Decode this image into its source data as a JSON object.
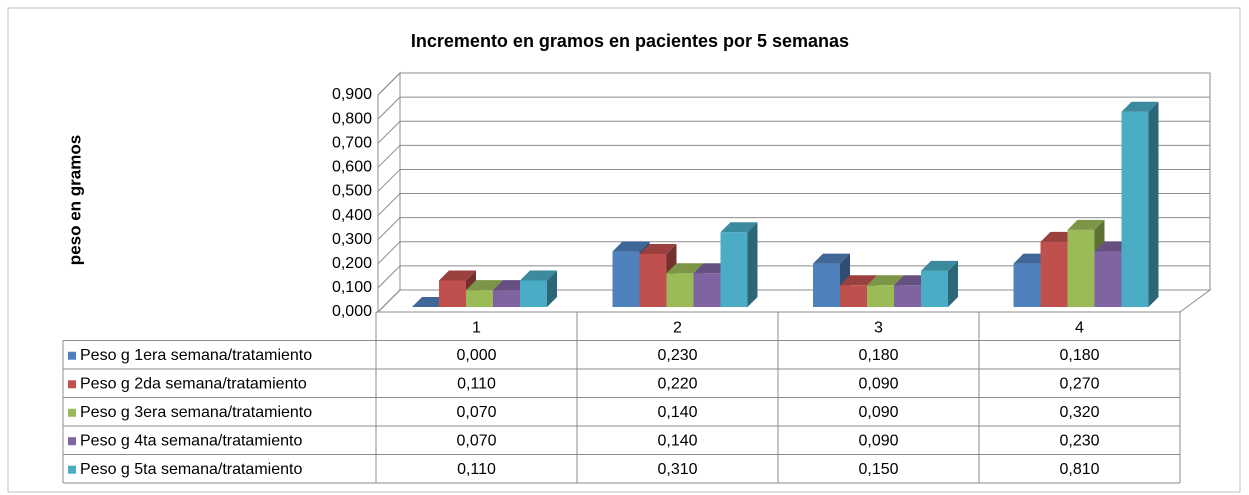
{
  "chart_data": {
    "type": "bar3d",
    "title": "Incremento en gramos en pacientes por 5 semanas",
    "y_label": "peso en gramos",
    "categories": [
      "1",
      "2",
      "3",
      "4"
    ],
    "series": [
      {
        "name": "Peso g 1era semana/tratamiento",
        "color": "#4f81bd",
        "values": [
          0,
          0.23,
          0.18,
          0.18
        ],
        "value_labels": [
          "0,000",
          "0,230",
          "0,180",
          "0,180"
        ]
      },
      {
        "name": "Peso g 2da semana/tratamiento",
        "color": "#c0504d",
        "values": [
          0.11,
          0.22,
          0.09,
          0.27
        ],
        "value_labels": [
          "0,110",
          "0,220",
          "0,090",
          "0,270"
        ]
      },
      {
        "name": "Peso g 3era semana/tratamiento",
        "color": "#9bbb59",
        "values": [
          0.07,
          0.14,
          0.09,
          0.32
        ],
        "value_labels": [
          "0,070",
          "0,140",
          "0,090",
          "0,320"
        ]
      },
      {
        "name": "Peso g 4ta semana/tratamiento",
        "color": "#8064a2",
        "values": [
          0.07,
          0.14,
          0.09,
          0.23
        ],
        "value_labels": [
          "0,070",
          "0,140",
          "0,090",
          "0,230"
        ]
      },
      {
        "name": "Peso g 5ta semana/tratamiento",
        "color": "#4bacc6",
        "values": [
          0.11,
          0.31,
          0.15,
          0.81
        ],
        "value_labels": [
          "0,110",
          "0,310",
          "0,150",
          "0,810"
        ]
      }
    ],
    "ylim": [
      0,
      0.9
    ],
    "yticks": [
      {
        "value": 0,
        "label": "0,000"
      },
      {
        "value": 0.1,
        "label": "0,100"
      },
      {
        "value": 0.2,
        "label": "0,200"
      },
      {
        "value": 0.3,
        "label": "0,300"
      },
      {
        "value": 0.4,
        "label": "0,400"
      },
      {
        "value": 0.5,
        "label": "0,500"
      },
      {
        "value": 0.6,
        "label": "0,600"
      },
      {
        "value": 0.7,
        "label": "0,700"
      },
      {
        "value": 0.8,
        "label": "0,800"
      },
      {
        "value": 0.9,
        "label": "0,900"
      }
    ],
    "grid": true
  }
}
